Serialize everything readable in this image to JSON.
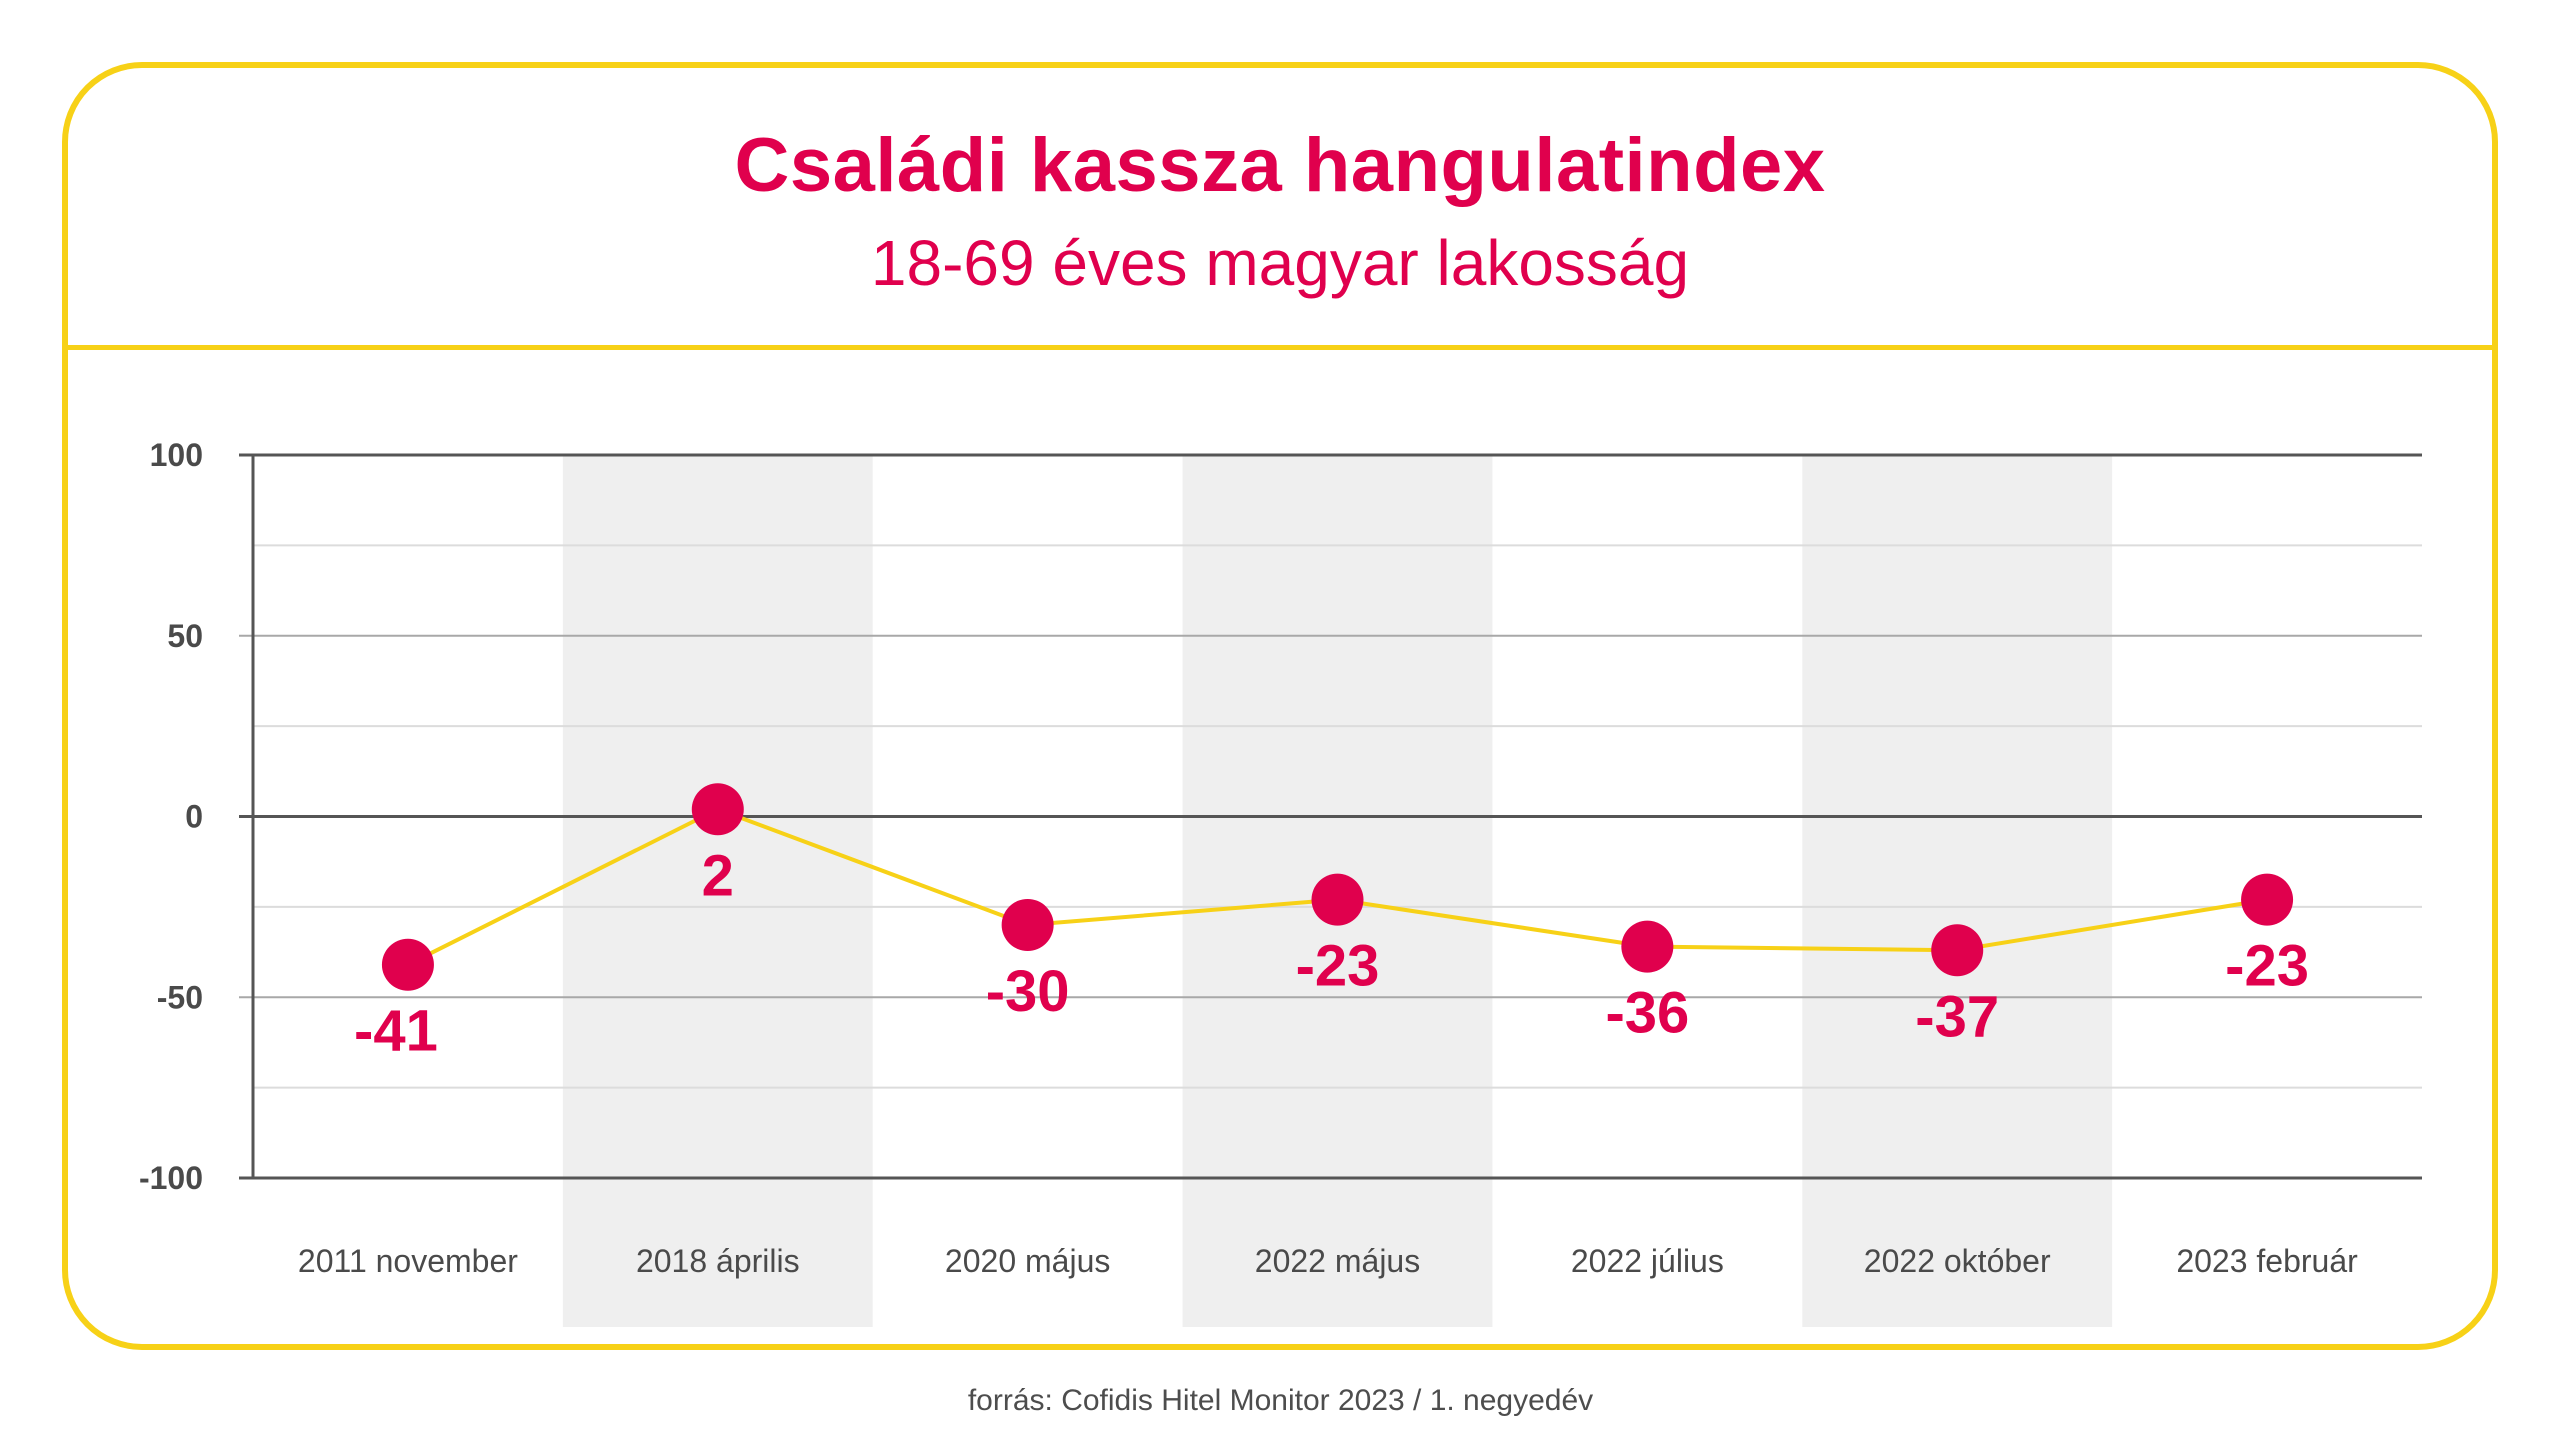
{
  "title": "Családi kassza hangulatindex",
  "subtitle": "18-69 éves magyar lakosság",
  "source": "forrás: Cofidis Hitel Monitor 2023 / 1. negyedév",
  "colors": {
    "accent": "#e0004d",
    "frame": "#f7d117",
    "line": "#f7d117",
    "band": "#efefef"
  },
  "chart_data": {
    "type": "line",
    "title": "Családi kassza hangulatindex",
    "subtitle": "18-69 éves magyar lakosság",
    "categories": [
      "2011 november",
      "2018 április",
      "2020 május",
      "2022 május",
      "2022 július",
      "2022 október",
      "2023 február"
    ],
    "series": [
      {
        "values": [
          -41,
          2,
          -30,
          -23,
          -36,
          -37,
          -23
        ]
      }
    ],
    "data_labels": [
      "-41",
      "2",
      "-30",
      "-23",
      "-36",
      "-37",
      "-23"
    ],
    "yticks": [
      "100",
      "50",
      "0",
      "-50",
      "-100"
    ],
    "ylim": [
      -100,
      100
    ],
    "xlabel": "",
    "ylabel": "",
    "grid": true,
    "minor_grid_step": 25,
    "shaded_categories": [
      1,
      3,
      5
    ]
  }
}
